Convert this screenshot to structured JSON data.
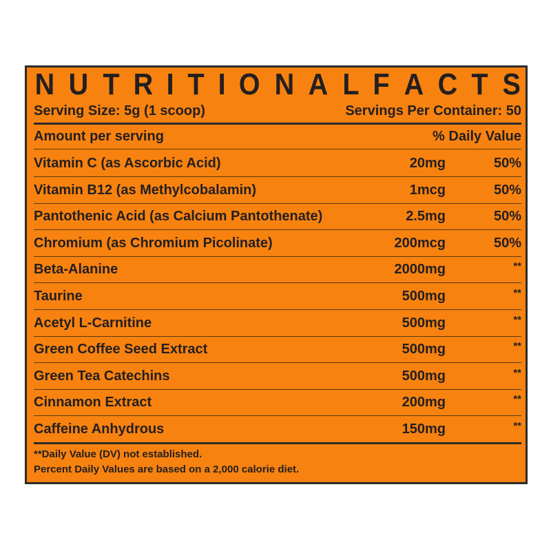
{
  "title_letters": [
    "N",
    "U",
    "T",
    "R",
    "I",
    "T",
    "I",
    "O",
    "N",
    "A",
    "L",
    "F",
    "A",
    "C",
    "T",
    "S"
  ],
  "title": "NUTRITIONAL FACTS",
  "serving_size": "Serving Size: 5g (1 scoop)",
  "servings_per_container": "Servings Per Container: 50",
  "header": {
    "amount": "Amount per serving",
    "dv": "% Daily Value"
  },
  "rows": [
    {
      "name": "Vitamin C (as Ascorbic Acid)",
      "amount": "20mg",
      "dv": "50%"
    },
    {
      "name": "Vitamin B12 (as Methylcobalamin)",
      "amount": "1mcg",
      "dv": "50%"
    },
    {
      "name": "Pantothenic Acid (as Calcium Pantothenate)",
      "amount": "2.5mg",
      "dv": "50%"
    },
    {
      "name": "Chromium (as Chromium Picolinate)",
      "amount": "200mcg",
      "dv": "50%"
    },
    {
      "name": "Beta-Alanine",
      "amount": "2000mg",
      "dv": "**"
    },
    {
      "name": "Taurine",
      "amount": "500mg",
      "dv": "**"
    },
    {
      "name": "Acetyl L-Carnitine",
      "amount": "500mg",
      "dv": "**"
    },
    {
      "name": "Green Coffee Seed Extract",
      "amount": "500mg",
      "dv": "**"
    },
    {
      "name": "Green Tea Catechins",
      "amount": "500mg",
      "dv": "**"
    },
    {
      "name": "Cinnamon Extract",
      "amount": "200mg",
      "dv": "**"
    },
    {
      "name": "Caffeine Anhydrous",
      "amount": "150mg",
      "dv": "**"
    }
  ],
  "footnotes": [
    "**Daily Value (DV) not established.",
    "Percent Daily Values are based on a 2,000 calorie diet."
  ],
  "colors": {
    "background": "#f7820f",
    "text": "#231f20"
  }
}
